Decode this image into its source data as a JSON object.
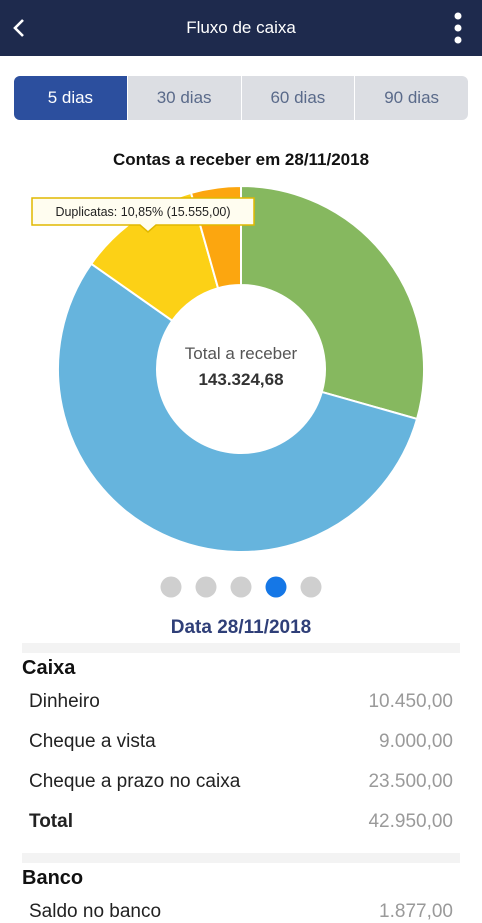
{
  "header": {
    "title": "Fluxo de caixa"
  },
  "tabs": {
    "items": [
      "5 dias",
      "30 dias",
      "60 dias",
      "90 dias"
    ],
    "active": 0
  },
  "chart_data": {
    "type": "donut",
    "title": "Contas a receber em 28/11/2018",
    "values": [
      29.4,
      55.35,
      10.85,
      4.4
    ],
    "colors": [
      "#86b85f",
      "#66b4dd",
      "#fcd116",
      "#fca60f"
    ],
    "tooltip": "Duplicatas: 10,85% (15.555,00)",
    "center_label": "Total a receber",
    "center_value": "143.324,68"
  },
  "pager": {
    "count": 5,
    "active": 3
  },
  "date_label": "Data 28/11/2018",
  "sections": [
    {
      "title": "Caixa",
      "rows": [
        [
          "Dinheiro",
          "10.450,00"
        ],
        [
          "Cheque a vista",
          "9.000,00"
        ],
        [
          "Cheque a prazo no caixa",
          "23.500,00"
        ]
      ],
      "total": [
        "Total",
        "42.950,00"
      ]
    },
    {
      "title": "Banco",
      "rows": [
        [
          "Saldo no banco",
          "1.877,00"
        ]
      ]
    }
  ]
}
